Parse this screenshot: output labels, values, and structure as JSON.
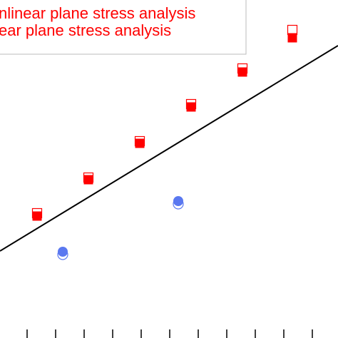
{
  "chart_data": {
    "type": "scatter",
    "xlim": [
      0,
      474
    ],
    "ylim": [
      0,
      474
    ],
    "xticks": [
      38,
      78,
      118,
      158,
      198,
      238,
      278,
      318,
      358,
      398,
      438
    ],
    "legend": "upper left",
    "series": [
      {
        "name": "nlinear plane stress analysis",
        "color": "#ff0000",
        "marker": "square-open",
        "x": [
          52,
          124,
          196,
          268,
          340,
          410
        ],
        "values": [
          175,
          225,
          276,
          328,
          378,
          432
        ]
      },
      {
        "name": "ear plane stress analysis",
        "color": "#ff0000",
        "marker": "square",
        "x": [
          52,
          124,
          196,
          268,
          340,
          410
        ],
        "values": [
          171,
          222,
          273,
          324,
          373,
          421
        ]
      },
      {
        "color": "#5a78f0",
        "marker": "circle-open",
        "x": [
          88,
          250
        ],
        "values": [
          117,
          188
        ]
      },
      {
        "color": "#5a78f0",
        "marker": "circle",
        "x": [
          88,
          250
        ],
        "values": [
          121,
          192
        ]
      },
      {
        "color": "#000000",
        "marker": "line",
        "x": [
          0,
          474
        ],
        "values": [
          122,
          410
        ]
      }
    ]
  }
}
